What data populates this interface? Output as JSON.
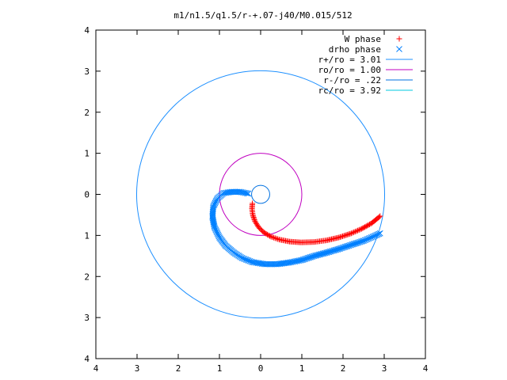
{
  "chart_data": {
    "type": "scatter",
    "title": "m1/n1.5/q1.5/r-+.07-j40/M0.015/512",
    "xlabel": "",
    "ylabel": "",
    "xlim": [
      -4,
      4
    ],
    "ylim": [
      -4,
      4
    ],
    "x_tick_values": [
      -4,
      -3,
      -2,
      -1,
      0,
      1,
      2,
      3,
      4
    ],
    "x_tick_labels": [
      "4",
      "3",
      "2",
      "1",
      "0",
      "1",
      "2",
      "3",
      "4"
    ],
    "y_tick_values": [
      4,
      3,
      2,
      1,
      0,
      -1,
      -2,
      -3,
      -4
    ],
    "y_tick_labels": [
      "4",
      "3",
      "2",
      "1",
      "0",
      "1",
      "2",
      "3",
      "4"
    ],
    "grid": false,
    "legend_position": "top-right",
    "legend": [
      {
        "label": "W phase",
        "kind": "plus",
        "color": "#ff0000"
      },
      {
        "label": "drho phase",
        "kind": "cross",
        "color": "#0080ff"
      },
      {
        "label": "r+/ro = 3.01",
        "kind": "line",
        "color": "#1e90ff"
      },
      {
        "label": "ro/ro = 1.00",
        "kind": "line",
        "color": "#c000c0"
      },
      {
        "label": "r-/ro = .22",
        "kind": "line",
        "color": "#0070e0"
      },
      {
        "label": "rc/ro = 3.92",
        "kind": "line",
        "color": "#00c8e0"
      }
    ],
    "circles": [
      {
        "name": "r+/ro",
        "radius": 3.01,
        "color": "#1e90ff"
      },
      {
        "name": "ro/ro",
        "radius": 1.0,
        "color": "#c000c0"
      },
      {
        "name": "r-/ro",
        "radius": 0.22,
        "color": "#0070e0"
      }
    ],
    "series": [
      {
        "name": "W phase",
        "marker": "plus",
        "color": "#ff0000",
        "x": [
          -0.2,
          -0.21,
          -0.19,
          -0.14,
          -0.05,
          0.08,
          0.25,
          0.45,
          0.7,
          0.98,
          1.3,
          1.6,
          1.9,
          2.2,
          2.45,
          2.7,
          2.9
        ],
        "y": [
          -0.22,
          -0.35,
          -0.5,
          -0.65,
          -0.8,
          -0.93,
          -1.03,
          -1.1,
          -1.15,
          -1.17,
          -1.16,
          -1.12,
          -1.05,
          -0.95,
          -0.84,
          -0.7,
          -0.53
        ]
      },
      {
        "name": "drho phase",
        "marker": "cross",
        "color": "#0080ff",
        "x": [
          -0.3,
          -0.5,
          -0.7,
          -0.9,
          -1.05,
          -1.15,
          -1.17,
          -1.12,
          -1.0,
          -0.85,
          -0.65,
          -0.45,
          -0.2,
          0.1,
          0.4,
          0.7,
          1.0,
          1.3,
          1.6,
          1.9,
          2.2,
          2.5,
          2.75,
          2.9
        ],
        "y": [
          0.02,
          0.06,
          0.06,
          0.03,
          -0.1,
          -0.3,
          -0.55,
          -0.8,
          -1.05,
          -1.25,
          -1.42,
          -1.55,
          -1.65,
          -1.7,
          -1.7,
          -1.66,
          -1.6,
          -1.5,
          -1.42,
          -1.33,
          -1.23,
          -1.13,
          -1.02,
          -0.95
        ]
      }
    ]
  }
}
